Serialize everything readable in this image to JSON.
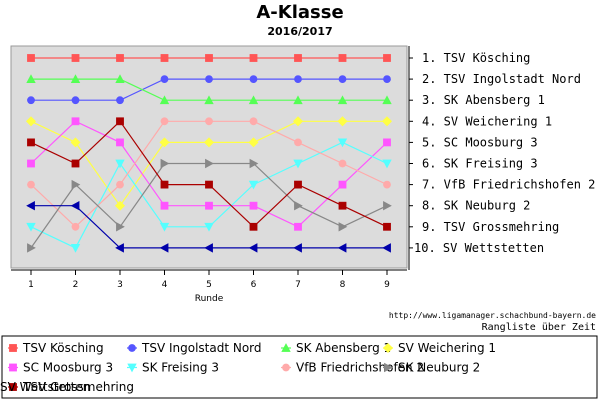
{
  "chart_data": {
    "type": "line",
    "title": "A-Klasse",
    "subtitle": "2016/2017",
    "xlabel": "Runde",
    "ylabel": "",
    "x": [
      1,
      2,
      3,
      4,
      5,
      6,
      7,
      8,
      9
    ],
    "ylim": [
      1,
      10
    ],
    "y_inverted": true,
    "grid": false,
    "legend_position": "bottom",
    "background": "#dcdcdc",
    "right_labels": [
      "1. TSV Kösching",
      "2. TSV Ingolstadt Nord",
      "3. SK Abensberg 1",
      "4. SV Weichering 1",
      "5. SC Moosburg 3",
      "6. SK Freising 3",
      "7. VfB Friedrichshofen 2",
      "8. SK Neuburg 2",
      "9. TSV Grossmehring",
      "10. SV Wettstetten"
    ],
    "source_text": "http://www.ligamanager.schachbund-bayern.de",
    "caption": "Rangliste über Zeit",
    "series": [
      {
        "name": "TSV Kösching",
        "values": [
          1,
          1,
          1,
          1,
          1,
          1,
          1,
          1,
          1
        ],
        "color": "#ff5555",
        "marker": "square"
      },
      {
        "name": "TSV Ingolstadt Nord",
        "values": [
          3,
          3,
          3,
          2,
          2,
          2,
          2,
          2,
          2
        ],
        "color": "#5555ff",
        "marker": "circle"
      },
      {
        "name": "SK Abensberg 1",
        "values": [
          2,
          2,
          2,
          3,
          3,
          3,
          3,
          3,
          3
        ],
        "color": "#55ff55",
        "marker": "triangle-up"
      },
      {
        "name": "SV Weichering 1",
        "values": [
          4,
          5,
          8,
          5,
          5,
          5,
          4,
          4,
          4
        ],
        "color": "#ffff44",
        "marker": "diamond"
      },
      {
        "name": "SC Moosburg 3",
        "values": [
          6,
          4,
          5,
          8,
          8,
          8,
          9,
          7,
          5
        ],
        "color": "#ff55ff",
        "marker": "square"
      },
      {
        "name": "SK Freising 3",
        "values": [
          9,
          10,
          6,
          9,
          9,
          7,
          6,
          5,
          6
        ],
        "color": "#55ffff",
        "marker": "triangle-down"
      },
      {
        "name": "VfB Friedrichshofen 2",
        "values": [
          7,
          9,
          7,
          4,
          4,
          4,
          5,
          6,
          7
        ],
        "color": "#ffaaaa",
        "marker": "circle"
      },
      {
        "name": "SK Neuburg 2",
        "values": [
          10,
          7,
          9,
          6,
          6,
          6,
          8,
          9,
          8
        ],
        "color": "#888888",
        "marker": "triangle-right"
      },
      {
        "name": "TSV Grossmehring",
        "values": [
          5,
          6,
          4,
          7,
          7,
          9,
          7,
          8,
          9
        ],
        "color": "#aa0000",
        "marker": "square"
      },
      {
        "name": "SV Wettstetten",
        "values": [
          8,
          8,
          10,
          10,
          10,
          10,
          10,
          10,
          10
        ],
        "color": "#0000aa",
        "marker": "triangle-left"
      }
    ]
  }
}
